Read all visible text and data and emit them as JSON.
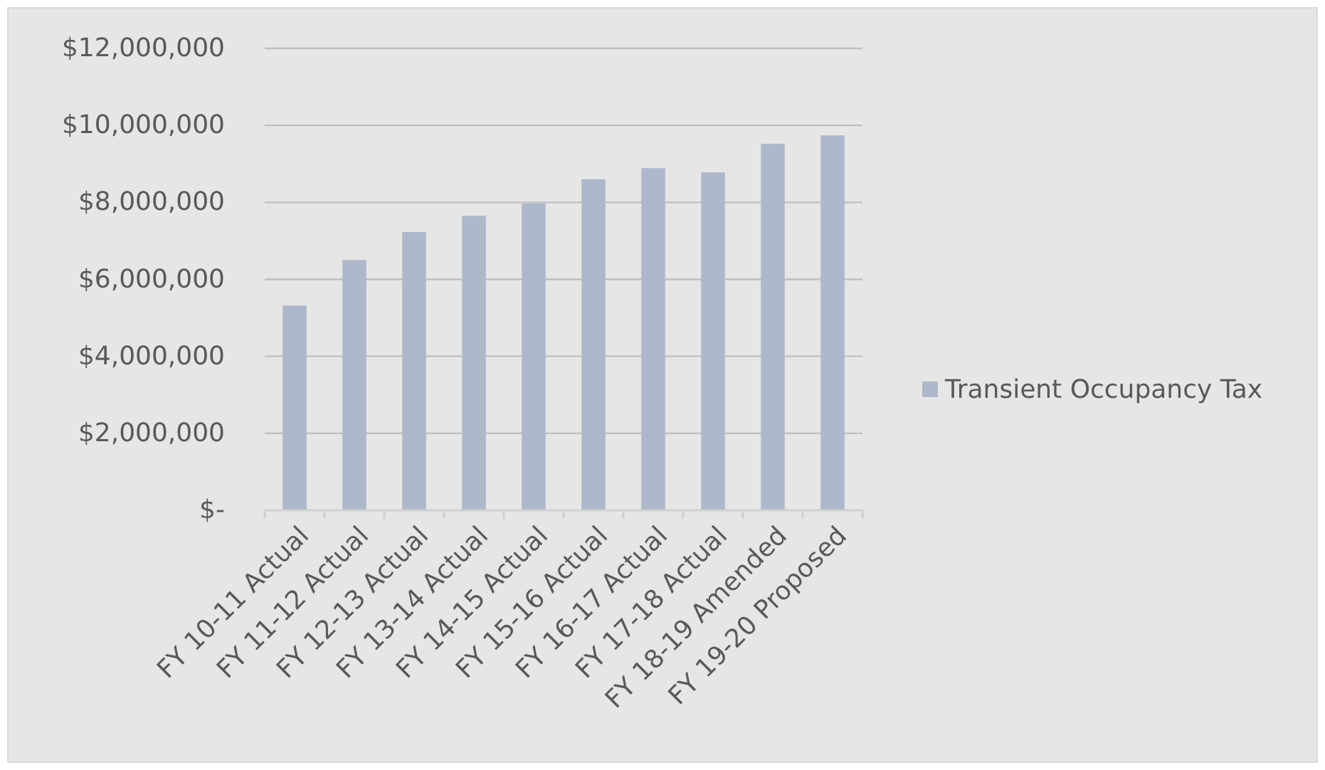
{
  "chart_data": {
    "type": "bar",
    "categories": [
      "FY 10-11 Actual",
      "FY 11-12 Actual",
      "FY 12-13 Actual",
      "FY 13-14 Actual",
      "FY 14-15 Actual",
      "FY 15-16 Actual",
      "FY 16-17 Actual",
      "FY 17-18 Actual",
      "FY 18-19 Amended",
      "FY 19-20 Proposed"
    ],
    "series": [
      {
        "name": "Transient Occupancy Tax",
        "color": "#adb9ca",
        "values": [
          5320000,
          6500000,
          7230000,
          7650000,
          7970000,
          8600000,
          8890000,
          8780000,
          9520000,
          9740000
        ]
      }
    ],
    "ylim": [
      0,
      12000000
    ],
    "yticks": [
      {
        "value": 0,
        "label": "$-"
      },
      {
        "value": 2000000,
        "label": "$2,000,000"
      },
      {
        "value": 4000000,
        "label": "$4,000,000"
      },
      {
        "value": 6000000,
        "label": "$6,000,000"
      },
      {
        "value": 8000000,
        "label": "$8,000,000"
      },
      {
        "value": 10000000,
        "label": "$10,000,000"
      },
      {
        "value": 12000000,
        "label": "$12,000,000"
      }
    ],
    "grid": "y",
    "legend": "right"
  }
}
